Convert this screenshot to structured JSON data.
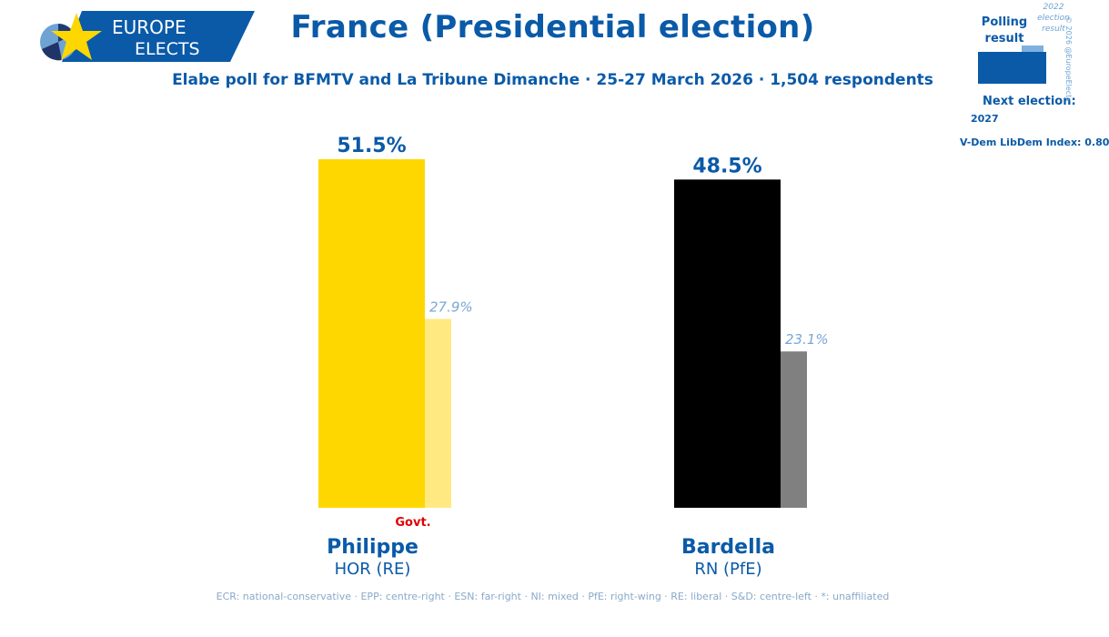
{
  "brand": {
    "line1": "EUROPE",
    "line2": "ELECTS"
  },
  "header": {
    "title": "France (Presidential election)",
    "subtitle": "Elabe poll for BFMTV and La Tribune Dimanche · 25-27 March 2026 · 1,504 respondents"
  },
  "legend": {
    "polling_label": "Polling result",
    "result_label": "2022 election result",
    "next_election_label": "Next election:",
    "next_election_year": "2027",
    "vdem": "V-Dem LibDem Index: 0.80",
    "copyright": "© 2026 @EuropeElects",
    "colors": {
      "polling": "#0a5aa8",
      "result": "#7fb0de"
    }
  },
  "chart_data": {
    "type": "bar",
    "categories": [
      "Philippe",
      "Bardella"
    ],
    "series": [
      {
        "name": "Polling result",
        "values": [
          51.5,
          48.5
        ]
      },
      {
        "name": "2022 election result",
        "values": [
          27.9,
          23.1
        ]
      }
    ],
    "value_labels": [
      "51.5%",
      "48.5%"
    ],
    "previous_labels": [
      "27.9%",
      "23.1%"
    ],
    "parties": [
      "HOR (RE)",
      "RN (PfE)"
    ],
    "govt_badges": [
      "Govt.",
      ""
    ],
    "bar_colors": [
      "#ffd700",
      "#000000"
    ],
    "previous_colors": [
      "#ffe980",
      "#808080"
    ],
    "ylim": [
      0,
      51.5
    ],
    "grid": false
  },
  "footnote": "ECR: national-conservative · EPP: centre-right · ESN: far-right · NI: mixed · PfE: right-wing · RE: liberal · S&D: centre-left · *: unaffiliated"
}
